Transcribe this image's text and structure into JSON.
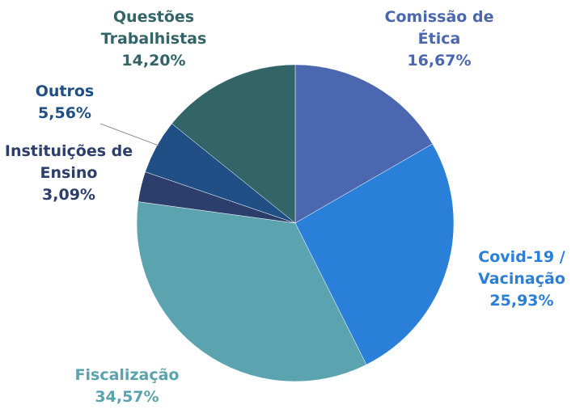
{
  "chart_data": {
    "type": "pie",
    "categories": [
      "Comissão de Ética",
      "Covid-19 / Vacinação",
      "Fiscalização",
      "Instituições de Ensino",
      "Outros",
      "Questões Trabalhistas"
    ],
    "values": [
      16.67,
      25.93,
      34.57,
      3.09,
      5.56,
      14.2
    ],
    "value_labels": [
      "16,67%",
      "25,93%",
      "34,57%",
      "3,09%",
      "5,56%",
      "14,20%"
    ],
    "colors": [
      "#4a67b0",
      "#2a7fd8",
      "#5ba3ae",
      "#2c3e6b",
      "#1f4f85",
      "#336468"
    ]
  }
}
